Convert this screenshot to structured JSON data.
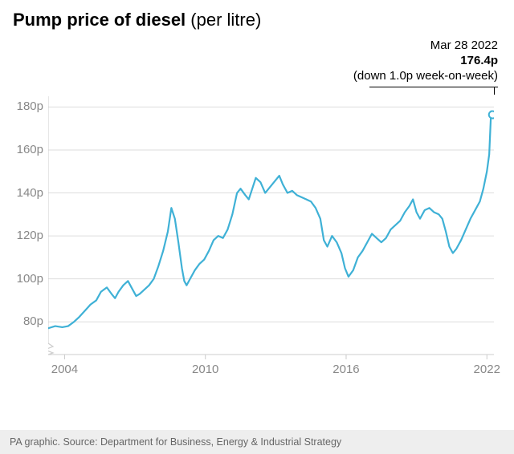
{
  "title_bold": "Pump price of diesel",
  "title_rest": " (per litre)",
  "annotation": {
    "date": "Mar 28 2022",
    "value": "176.4p",
    "note": "(down 1.0p week-on-week)"
  },
  "footer": "PA graphic. Source: Department for Business, Energy & Industrial Strategy",
  "chart": {
    "type": "line",
    "line_color": "#3fb1d6",
    "line_width": 2.2,
    "marker_stroke": "#3fb1d6",
    "marker_fill": "#ffffff",
    "marker_radius": 4.5,
    "background_color": "#ffffff",
    "grid_color": "#dddddd",
    "axis_color": "#cccccc",
    "label_color": "#888888",
    "label_fontsize": 15,
    "xlim": [
      2003.3,
      2022.3
    ],
    "ylim_break_low": 65,
    "ylim": [
      70,
      185
    ],
    "yticks": [
      80,
      100,
      120,
      140,
      160,
      180
    ],
    "ytick_labels": [
      "80p",
      "100p",
      "120p",
      "140p",
      "160p",
      "180p"
    ],
    "xticks": [
      2004,
      2010,
      2016,
      2022
    ],
    "xtick_labels": [
      "2004",
      "2010",
      "2016",
      "2022"
    ],
    "axis_break": true,
    "series": [
      [
        2003.3,
        77
      ],
      [
        2003.6,
        78
      ],
      [
        2003.9,
        77.5
      ],
      [
        2004.15,
        78
      ],
      [
        2004.4,
        80
      ],
      [
        2004.6,
        82
      ],
      [
        2004.85,
        85
      ],
      [
        2005.1,
        88
      ],
      [
        2005.35,
        90
      ],
      [
        2005.55,
        94
      ],
      [
        2005.8,
        96
      ],
      [
        2006.0,
        93
      ],
      [
        2006.15,
        91
      ],
      [
        2006.3,
        94
      ],
      [
        2006.5,
        97
      ],
      [
        2006.7,
        99
      ],
      [
        2006.9,
        95
      ],
      [
        2007.05,
        92
      ],
      [
        2007.2,
        93
      ],
      [
        2007.4,
        95
      ],
      [
        2007.6,
        97
      ],
      [
        2007.8,
        100
      ],
      [
        2008.0,
        106
      ],
      [
        2008.2,
        113
      ],
      [
        2008.4,
        122
      ],
      [
        2008.55,
        133
      ],
      [
        2008.7,
        128
      ],
      [
        2008.85,
        117
      ],
      [
        2009.0,
        105
      ],
      [
        2009.1,
        99
      ],
      [
        2009.2,
        97
      ],
      [
        2009.35,
        100
      ],
      [
        2009.55,
        104
      ],
      [
        2009.75,
        107
      ],
      [
        2009.95,
        109
      ],
      [
        2010.15,
        113
      ],
      [
        2010.35,
        118
      ],
      [
        2010.55,
        120
      ],
      [
        2010.75,
        119
      ],
      [
        2010.95,
        123
      ],
      [
        2011.15,
        130
      ],
      [
        2011.35,
        140
      ],
      [
        2011.5,
        142
      ],
      [
        2011.7,
        139
      ],
      [
        2011.85,
        137
      ],
      [
        2012.0,
        142
      ],
      [
        2012.15,
        147
      ],
      [
        2012.35,
        145
      ],
      [
        2012.55,
        140
      ],
      [
        2012.7,
        142
      ],
      [
        2012.85,
        144
      ],
      [
        2013.0,
        146
      ],
      [
        2013.15,
        148
      ],
      [
        2013.3,
        144
      ],
      [
        2013.5,
        140
      ],
      [
        2013.7,
        141
      ],
      [
        2013.9,
        139
      ],
      [
        2014.1,
        138
      ],
      [
        2014.3,
        137
      ],
      [
        2014.5,
        136
      ],
      [
        2014.7,
        133
      ],
      [
        2014.9,
        128
      ],
      [
        2015.05,
        118
      ],
      [
        2015.2,
        115
      ],
      [
        2015.4,
        120
      ],
      [
        2015.6,
        117
      ],
      [
        2015.8,
        112
      ],
      [
        2015.95,
        105
      ],
      [
        2016.1,
        101
      ],
      [
        2016.3,
        104
      ],
      [
        2016.5,
        110
      ],
      [
        2016.7,
        113
      ],
      [
        2016.9,
        117
      ],
      [
        2017.1,
        121
      ],
      [
        2017.3,
        119
      ],
      [
        2017.5,
        117
      ],
      [
        2017.7,
        119
      ],
      [
        2017.9,
        123
      ],
      [
        2018.1,
        125
      ],
      [
        2018.3,
        127
      ],
      [
        2018.5,
        131
      ],
      [
        2018.7,
        134
      ],
      [
        2018.85,
        137
      ],
      [
        2019.0,
        131
      ],
      [
        2019.15,
        128
      ],
      [
        2019.35,
        132
      ],
      [
        2019.55,
        133
      ],
      [
        2019.75,
        131
      ],
      [
        2019.95,
        130
      ],
      [
        2020.1,
        128
      ],
      [
        2020.25,
        122
      ],
      [
        2020.4,
        115
      ],
      [
        2020.55,
        112
      ],
      [
        2020.7,
        114
      ],
      [
        2020.9,
        118
      ],
      [
        2021.1,
        123
      ],
      [
        2021.3,
        128
      ],
      [
        2021.5,
        132
      ],
      [
        2021.7,
        136
      ],
      [
        2021.85,
        142
      ],
      [
        2022.0,
        150
      ],
      [
        2022.1,
        158
      ],
      [
        2022.18,
        178
      ],
      [
        2022.24,
        176.4
      ]
    ]
  }
}
